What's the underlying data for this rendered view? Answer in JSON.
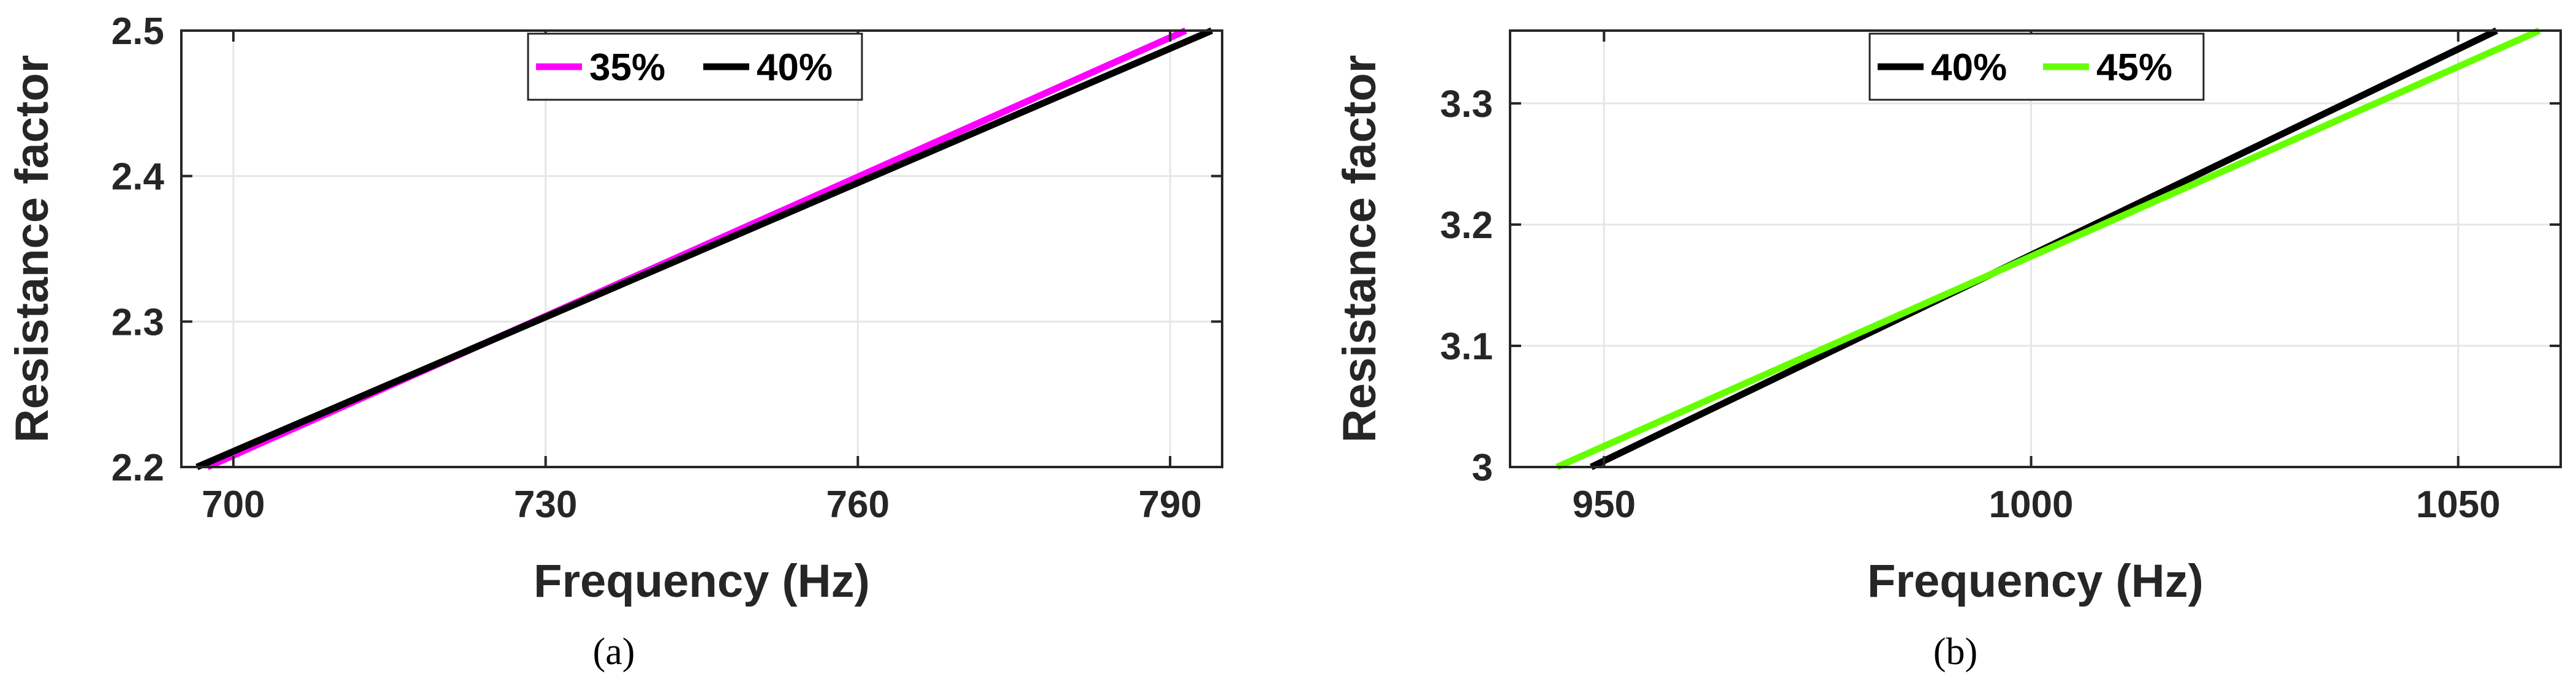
{
  "chart_data": [
    {
      "type": "line",
      "panel_label": "(a)",
      "xlabel": "Frequency (Hz)",
      "ylabel": "Resistance factor",
      "xlim": [
        695,
        795
      ],
      "ylim": [
        2.2,
        2.5
      ],
      "xticks": [
        700,
        730,
        760,
        790
      ],
      "xtick_labels": [
        "700",
        "730",
        "760",
        "790"
      ],
      "yticks": [
        2.2,
        2.3,
        2.4,
        2.5
      ],
      "ytick_labels": [
        "2.2",
        "2.3",
        "2.4",
        "2.5"
      ],
      "grid": true,
      "legend_position": "top-center",
      "series": [
        {
          "name": "35%",
          "color": "#ff00ff",
          "x": [
            697.5,
            791.5
          ],
          "y": [
            2.2,
            2.5
          ]
        },
        {
          "name": "40%",
          "color": "#000000",
          "x": [
            696.5,
            794.0
          ],
          "y": [
            2.2,
            2.5
          ]
        }
      ]
    },
    {
      "type": "line",
      "panel_label": "(b)",
      "xlabel": "Frequency (Hz)",
      "ylabel": "Resistance factor",
      "xlim": [
        939,
        1062
      ],
      "ylim": [
        3.0,
        3.36
      ],
      "xticks": [
        950,
        1000,
        1050
      ],
      "xtick_labels": [
        "950",
        "1000",
        "1050"
      ],
      "yticks": [
        3.0,
        3.1,
        3.2,
        3.3
      ],
      "ytick_labels": [
        "3",
        "3.1",
        "3.2",
        "3.3"
      ],
      "grid": true,
      "legend_position": "top-center",
      "series": [
        {
          "name": "40%",
          "color": "#000000",
          "x": [
            948.5,
            1054.5
          ],
          "y": [
            3.0,
            3.36
          ]
        },
        {
          "name": "45%",
          "color": "#66ff00",
          "x": [
            944.5,
            1059.5
          ],
          "y": [
            3.0,
            3.36
          ]
        }
      ]
    }
  ]
}
